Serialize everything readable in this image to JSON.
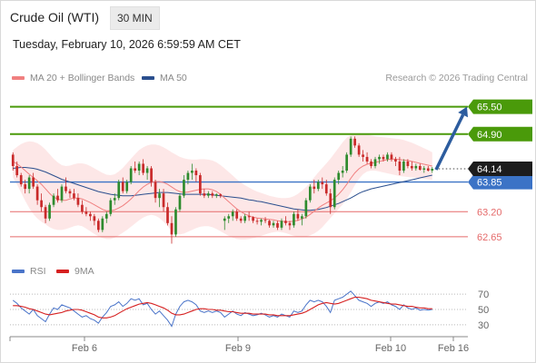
{
  "header": {
    "instrument": "Crude Oil (WTI)",
    "timeframe": "30 MIN",
    "timestamp": "Tuesday, February 10, 2026 6:59:59 AM CET"
  },
  "legend": {
    "ma20_label": "MA 20 + Bollinger Bands",
    "ma50_label": "MA 50",
    "rsi_label": "RSI",
    "ma9_label": "9MA",
    "copyright": "Research © 2026 Trading Central"
  },
  "colors": {
    "ma20": "#f08080",
    "ma50": "#2b4f8e",
    "bollinger": "#fde3e3",
    "resistance": "#4a9a0a",
    "pivot": "#3b73c6",
    "support": "#e56a6a",
    "arrow": "#2c5c9e",
    "candle_up": "#2e8b2e",
    "candle_down": "#c92a2a",
    "rsi": "#4a74c9",
    "rsi_ma": "#d62020"
  },
  "chart_data": {
    "type": "candlestick",
    "price_levels": [
      {
        "value": 65.5,
        "label": "65.50",
        "kind": "resistance"
      },
      {
        "value": 64.9,
        "label": "64.90",
        "kind": "resistance"
      },
      {
        "value": 63.85,
        "label": "63.85",
        "kind": "pivot"
      },
      {
        "value": 63.2,
        "label": "63.20",
        "kind": "support"
      },
      {
        "value": 62.65,
        "label": "62.65",
        "kind": "support"
      }
    ],
    "last_price": {
      "value": 64.14,
      "label": "64.14"
    },
    "x_ticks": [
      "Feb 6",
      "Feb 9",
      "Feb 10",
      "Feb 16"
    ],
    "rsi_ticks": [
      70,
      50,
      30
    ],
    "y_range": [
      62.35,
      65.85
    ],
    "rsi_range": [
      18,
      82
    ],
    "projection": {
      "from": 64.12,
      "to": 65.5
    },
    "candles": [
      [
        64.45,
        64.5,
        64.1,
        64.2
      ],
      [
        64.2,
        64.3,
        63.95,
        64.0
      ],
      [
        64.0,
        64.05,
        63.75,
        63.8
      ],
      [
        63.8,
        63.9,
        63.6,
        63.7
      ],
      [
        63.7,
        64.0,
        63.6,
        63.95
      ],
      [
        63.95,
        64.05,
        63.7,
        63.75
      ],
      [
        63.75,
        63.8,
        63.35,
        63.45
      ],
      [
        63.45,
        63.6,
        63.2,
        63.3
      ],
      [
        63.3,
        63.35,
        62.95,
        63.05
      ],
      [
        63.05,
        63.4,
        63.0,
        63.35
      ],
      [
        63.35,
        63.6,
        63.3,
        63.55
      ],
      [
        63.55,
        63.7,
        63.4,
        63.45
      ],
      [
        63.45,
        63.8,
        63.4,
        63.75
      ],
      [
        63.75,
        63.95,
        63.6,
        63.65
      ],
      [
        63.65,
        63.7,
        63.5,
        63.6
      ],
      [
        63.6,
        63.7,
        63.45,
        63.5
      ],
      [
        63.5,
        63.6,
        63.3,
        63.35
      ],
      [
        63.35,
        63.45,
        63.15,
        63.2
      ],
      [
        63.2,
        63.3,
        63.1,
        63.15
      ],
      [
        63.15,
        63.2,
        63.0,
        63.1
      ],
      [
        63.1,
        63.15,
        62.9,
        63.0
      ],
      [
        63.0,
        63.05,
        62.75,
        62.8
      ],
      [
        62.8,
        63.1,
        62.75,
        63.05
      ],
      [
        63.05,
        63.2,
        62.95,
        63.15
      ],
      [
        63.15,
        63.5,
        63.1,
        63.45
      ],
      [
        63.45,
        63.6,
        63.35,
        63.5
      ],
      [
        63.5,
        63.9,
        63.45,
        63.85
      ],
      [
        63.85,
        63.95,
        63.6,
        63.65
      ],
      [
        63.65,
        63.9,
        63.6,
        63.85
      ],
      [
        63.85,
        64.2,
        63.8,
        64.15
      ],
      [
        64.15,
        64.3,
        64.05,
        64.1
      ],
      [
        64.1,
        64.3,
        64.0,
        64.25
      ],
      [
        64.25,
        64.35,
        64.0,
        64.05
      ],
      [
        64.05,
        64.2,
        63.9,
        64.15
      ],
      [
        64.15,
        64.2,
        63.75,
        63.85
      ],
      [
        63.85,
        63.9,
        63.4,
        63.5
      ],
      [
        63.5,
        63.7,
        63.3,
        63.6
      ],
      [
        63.6,
        63.7,
        63.2,
        63.3
      ],
      [
        63.3,
        63.4,
        62.9,
        62.95
      ],
      [
        62.95,
        63.1,
        62.5,
        62.7
      ],
      [
        62.7,
        63.3,
        62.65,
        63.25
      ],
      [
        63.25,
        63.6,
        63.2,
        63.55
      ],
      [
        63.55,
        64.0,
        63.5,
        63.9
      ],
      [
        63.9,
        64.1,
        63.8,
        64.05
      ],
      [
        64.05,
        64.25,
        63.9,
        64.1
      ],
      [
        64.1,
        64.15,
        63.85,
        64.0
      ],
      [
        64.0,
        64.05,
        63.55,
        63.6
      ],
      [
        63.6,
        63.7,
        63.5,
        63.55
      ],
      [
        63.55,
        63.65,
        63.5,
        63.6
      ],
      [
        63.6,
        63.65,
        63.5,
        63.55
      ],
      [
        63.55,
        63.6,
        63.5,
        63.58
      ],
      [
        63.58,
        63.6,
        63.5,
        63.55
      ],
      [
        63.0,
        63.1,
        62.8,
        63.05
      ],
      [
        63.05,
        63.15,
        62.95,
        63.1
      ],
      [
        63.1,
        63.25,
        63.0,
        63.2
      ],
      [
        63.2,
        63.25,
        63.0,
        63.05
      ],
      [
        63.05,
        63.1,
        62.95,
        63.0
      ],
      [
        63.0,
        63.15,
        62.95,
        63.1
      ],
      [
        63.1,
        63.2,
        63.0,
        63.08
      ],
      [
        63.08,
        63.1,
        62.95,
        63.0
      ],
      [
        63.0,
        63.05,
        62.92,
        62.98
      ],
      [
        62.98,
        63.05,
        62.9,
        63.02
      ],
      [
        63.02,
        63.08,
        62.95,
        63.0
      ],
      [
        63.0,
        63.02,
        62.85,
        62.9
      ],
      [
        62.9,
        63.0,
        62.85,
        62.95
      ],
      [
        62.95,
        63.0,
        62.8,
        62.85
      ],
      [
        62.85,
        63.05,
        62.8,
        63.0
      ],
      [
        63.0,
        63.1,
        62.9,
        62.95
      ],
      [
        62.95,
        63.0,
        62.8,
        62.9
      ],
      [
        62.9,
        63.2,
        62.85,
        63.15
      ],
      [
        63.15,
        63.25,
        63.0,
        63.05
      ],
      [
        63.05,
        63.15,
        62.9,
        63.1
      ],
      [
        63.1,
        63.5,
        63.05,
        63.45
      ],
      [
        63.45,
        63.8,
        63.4,
        63.75
      ],
      [
        63.75,
        63.9,
        63.6,
        63.7
      ],
      [
        63.7,
        63.9,
        63.65,
        63.85
      ],
      [
        63.85,
        63.95,
        63.7,
        63.8
      ],
      [
        63.8,
        63.9,
        63.55,
        63.6
      ],
      [
        63.6,
        63.7,
        63.15,
        63.3
      ],
      [
        63.3,
        63.95,
        63.25,
        63.9
      ],
      [
        63.9,
        64.1,
        63.8,
        64.05
      ],
      [
        64.05,
        64.2,
        63.95,
        64.1
      ],
      [
        64.1,
        64.5,
        64.05,
        64.45
      ],
      [
        64.45,
        64.85,
        64.4,
        64.8
      ],
      [
        64.8,
        64.85,
        64.6,
        64.65
      ],
      [
        64.65,
        64.7,
        64.4,
        64.45
      ],
      [
        64.45,
        64.55,
        64.3,
        64.4
      ],
      [
        64.4,
        64.5,
        64.25,
        64.3
      ],
      [
        64.3,
        64.35,
        64.15,
        64.2
      ],
      [
        64.2,
        64.4,
        64.15,
        64.35
      ],
      [
        64.35,
        64.45,
        64.25,
        64.4
      ],
      [
        64.4,
        64.45,
        64.3,
        64.35
      ],
      [
        64.35,
        64.5,
        64.3,
        64.45
      ],
      [
        64.45,
        64.5,
        64.3,
        64.35
      ],
      [
        64.35,
        64.4,
        64.2,
        64.3
      ],
      [
        64.3,
        64.4,
        64.0,
        64.1
      ],
      [
        64.1,
        64.35,
        64.05,
        64.3
      ],
      [
        64.3,
        64.35,
        64.15,
        64.2
      ],
      [
        64.2,
        64.3,
        64.1,
        64.15
      ],
      [
        64.15,
        64.25,
        64.1,
        64.2
      ],
      [
        64.2,
        64.25,
        64.1,
        64.12
      ],
      [
        64.12,
        64.2,
        64.05,
        64.15
      ],
      [
        64.15,
        64.2,
        64.08,
        64.1
      ],
      [
        64.1,
        64.18,
        64.05,
        64.14
      ]
    ],
    "ma20": [
      64.3,
      64.25,
      64.18,
      64.1,
      64.02,
      63.95,
      63.88,
      63.8,
      63.7,
      63.6,
      63.52,
      63.48,
      63.45,
      63.45,
      63.48,
      63.5,
      63.5,
      63.48,
      63.44,
      63.4,
      63.35,
      63.3,
      63.25,
      63.22,
      63.22,
      63.24,
      63.28,
      63.33,
      63.4,
      63.48,
      63.57,
      63.66,
      63.74,
      63.8,
      63.84,
      63.86,
      63.86,
      63.84,
      63.8,
      63.74,
      63.68,
      63.64,
      63.62,
      63.63,
      63.65,
      63.67,
      63.69,
      63.7,
      63.7,
      63.68,
      63.64,
      63.58,
      63.5,
      63.42,
      63.34,
      63.26,
      63.2,
      63.15,
      63.11,
      63.08,
      63.06,
      63.05,
      63.04,
      63.03,
      63.02,
      63.0,
      62.99,
      62.98,
      62.98,
      62.99,
      63.01,
      63.04,
      63.08,
      63.14,
      63.21,
      63.28,
      63.34,
      63.39,
      63.44,
      63.5,
      63.58,
      63.68,
      63.8,
      63.93,
      64.05,
      64.14,
      64.2,
      64.24,
      64.26,
      64.28,
      64.3,
      64.32,
      64.34,
      64.35,
      64.35,
      64.34,
      64.33,
      64.32,
      64.3,
      64.28,
      64.26,
      64.24,
      64.22,
      64.2
    ],
    "ma50": [
      64.15,
      64.16,
      64.17,
      64.17,
      64.16,
      64.15,
      64.13,
      64.1,
      64.07,
      64.03,
      63.99,
      63.95,
      63.91,
      63.88,
      63.85,
      63.82,
      63.79,
      63.76,
      63.73,
      63.7,
      63.67,
      63.64,
      63.62,
      63.6,
      63.58,
      63.57,
      63.56,
      63.55,
      63.55,
      63.55,
      63.56,
      63.57,
      63.58,
      63.59,
      63.6,
      63.61,
      63.62,
      63.62,
      63.62,
      63.61,
      63.6,
      63.59,
      63.58,
      63.58,
      63.58,
      63.58,
      63.58,
      63.58,
      63.58,
      63.57,
      63.56,
      63.55,
      63.54,
      63.53,
      63.52,
      63.51,
      63.5,
      63.48,
      63.46,
      63.45,
      63.43,
      63.42,
      63.4,
      63.38,
      63.36,
      63.34,
      63.32,
      63.3,
      63.28,
      63.26,
      63.25,
      63.24,
      63.23,
      63.23,
      63.24,
      63.25,
      63.27,
      63.29,
      63.32,
      63.35,
      63.38,
      63.42,
      63.46,
      63.5,
      63.55,
      63.6,
      63.64,
      63.67,
      63.7,
      63.72,
      63.74,
      63.76,
      63.78,
      63.8,
      63.82,
      63.84,
      63.86,
      63.88,
      63.9,
      63.92,
      63.94,
      63.96,
      63.98,
      64.0
    ],
    "bb_upper": [
      64.55,
      64.62,
      64.68,
      64.72,
      64.74,
      64.73,
      64.7,
      64.64,
      64.56,
      64.46,
      64.36,
      64.28,
      64.22,
      64.2,
      64.21,
      64.24,
      64.26,
      64.26,
      64.24,
      64.2,
      64.15,
      64.1,
      64.05,
      64.01,
      64.0,
      64.02,
      64.08,
      64.16,
      64.26,
      64.36,
      64.46,
      64.55,
      64.61,
      64.65,
      64.67,
      64.67,
      64.65,
      64.61,
      64.56,
      64.5,
      64.45,
      64.4,
      64.37,
      64.35,
      64.34,
      64.34,
      64.35,
      64.35,
      64.34,
      64.32,
      64.28,
      64.22,
      64.15,
      64.07,
      63.99,
      63.91,
      63.84,
      63.78,
      63.73,
      63.68,
      63.64,
      63.61,
      63.58,
      63.55,
      63.53,
      63.51,
      63.5,
      63.5,
      63.51,
      63.54,
      63.59,
      63.66,
      63.74,
      63.84,
      63.95,
      64.06,
      64.16,
      64.26,
      64.36,
      64.48,
      64.6,
      64.72,
      64.82,
      64.88,
      64.91,
      64.92,
      64.91,
      64.89,
      64.87,
      64.85,
      64.84,
      64.83,
      64.82,
      64.81,
      64.8,
      64.79,
      64.77,
      64.74,
      64.71,
      64.67,
      64.63,
      64.59,
      64.55,
      64.5
    ],
    "bb_lower": [
      63.95,
      63.8,
      63.62,
      63.44,
      63.28,
      63.15,
      63.05,
      62.98,
      62.92,
      62.86,
      62.82,
      62.8,
      62.8,
      62.82,
      62.85,
      62.88,
      62.9,
      62.88,
      62.83,
      62.77,
      62.71,
      62.66,
      62.62,
      62.6,
      62.6,
      62.63,
      62.68,
      62.74,
      62.8,
      62.87,
      62.94,
      63.01,
      63.07,
      63.11,
      63.13,
      63.11,
      63.06,
      62.98,
      62.88,
      62.78,
      62.72,
      62.7,
      62.72,
      62.76,
      62.8,
      62.84,
      62.87,
      62.88,
      62.88,
      62.86,
      62.82,
      62.77,
      62.72,
      62.67,
      62.63,
      62.6,
      62.59,
      62.59,
      62.6,
      62.62,
      62.64,
      62.67,
      62.7,
      62.73,
      62.75,
      62.76,
      62.75,
      62.73,
      62.7,
      62.67,
      62.65,
      62.64,
      62.65,
      62.68,
      62.72,
      62.78,
      62.86,
      62.96,
      63.06,
      63.16,
      63.26,
      63.36,
      63.48,
      63.62,
      63.78,
      63.92,
      64.02,
      64.08,
      64.1,
      64.1,
      64.08,
      64.06,
      64.04,
      64.02,
      64.0,
      63.98,
      63.97,
      63.96,
      63.95,
      63.94,
      63.93,
      63.92,
      63.91,
      63.9
    ],
    "rsi": [
      62,
      58,
      52,
      48,
      44,
      50,
      42,
      38,
      34,
      44,
      52,
      50,
      56,
      54,
      52,
      48,
      44,
      40,
      42,
      38,
      36,
      32,
      40,
      46,
      54,
      56,
      60,
      54,
      58,
      64,
      62,
      64,
      56,
      58,
      50,
      44,
      48,
      42,
      36,
      28,
      44,
      54,
      60,
      62,
      60,
      56,
      48,
      46,
      48,
      46,
      48,
      46,
      40,
      44,
      48,
      44,
      42,
      46,
      44,
      42,
      43,
      45,
      43,
      40,
      42,
      40,
      44,
      42,
      40,
      48,
      46,
      48,
      56,
      62,
      60,
      62,
      60,
      54,
      46,
      62,
      64,
      66,
      70,
      74,
      68,
      62,
      60,
      58,
      54,
      58,
      60,
      58,
      60,
      56,
      54,
      50,
      56,
      52,
      50,
      52,
      49,
      50,
      49,
      50
    ],
    "rsi_ma": [
      55,
      55,
      54,
      53,
      51,
      50,
      48,
      46,
      44,
      43,
      44,
      45,
      46,
      48,
      49,
      50,
      50,
      49,
      47,
      45,
      43,
      40,
      39,
      39,
      40,
      42,
      45,
      48,
      51,
      53,
      55,
      57,
      58,
      59,
      58,
      56,
      54,
      52,
      49,
      45,
      43,
      43,
      44,
      46,
      48,
      50,
      51,
      51,
      50,
      50,
      49,
      49,
      48,
      47,
      47,
      46,
      45,
      45,
      45,
      44,
      44,
      44,
      44,
      43,
      43,
      42,
      42,
      42,
      42,
      43,
      44,
      45,
      47,
      50,
      53,
      56,
      58,
      59,
      58,
      57,
      58,
      60,
      62,
      64,
      66,
      66,
      65,
      64,
      62,
      61,
      60,
      59,
      58,
      57,
      57,
      56,
      55,
      54,
      54,
      53,
      52,
      52,
      51,
      51
    ]
  }
}
